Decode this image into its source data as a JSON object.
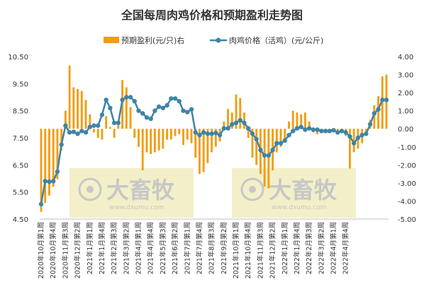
{
  "chart_data": {
    "type": "bar+line",
    "title": "全国每周肉鸡价格和预期盈利走势图",
    "legend": {
      "position": "top-center",
      "bar_label": "预期盈利(元/只)右",
      "line_label": "肉鸡价格（活鸡）(元/公斤)"
    },
    "colors": {
      "bar": "#f39c11",
      "line": "#3d84a8",
      "watermark_bg": "#f3efc9",
      "watermark_text": "#c7c7c7"
    },
    "y_left": {
      "min": 4.5,
      "max": 10.5,
      "ticks": [
        "4.50",
        "5.50",
        "6.50",
        "7.50",
        "8.50",
        "9.50",
        "10.50"
      ]
    },
    "y_right": {
      "min": -5,
      "max": 4,
      "ticks": [
        "-5.00",
        "-4.00",
        "-3.00",
        "-2.00",
        "-1.00",
        "0.00",
        "1.00",
        "2.00",
        "3.00",
        "4.00"
      ]
    },
    "x_tick_labels": [
      "2020年10月第1周",
      "2020年10月第4周",
      "2020年11月第3周",
      "2020年12月第2周",
      "2021年1月第1周",
      "2021年1月第4周",
      "2021年2月第3周",
      "2021年3月第2周",
      "2021年4月第1周",
      "2021年4月第4周",
      "2021年5月第3周",
      "2021年6月第2周",
      "2021年7月第1周",
      "2021年7月第4周",
      "2021年8月第3周",
      "2021年9月第2周",
      "2021年10月第1周",
      "2021年10月第4周",
      "2021年11月第3周",
      "2021年12月第2周",
      "2022年1月第1周",
      "2022年1月第4周",
      "2022年2月第3周",
      "2022年3月第2周",
      "2022年4月第1周",
      "2022年4月第4周"
    ],
    "watermark": {
      "brand": "大畜牧",
      "url": "www.dxumu.com"
    },
    "price": [
      5.05,
      5.9,
      5.88,
      5.9,
      6.25,
      7.25,
      7.95,
      7.7,
      7.72,
      7.65,
      7.75,
      7.7,
      7.9,
      7.95,
      7.95,
      8.35,
      8.9,
      8.6,
      8.05,
      8.05,
      8.9,
      9.0,
      9.0,
      8.85,
      8.5,
      8.4,
      8.25,
      8.2,
      8.5,
      8.65,
      8.6,
      8.7,
      8.95,
      8.95,
      8.85,
      8.5,
      8.45,
      8.55,
      7.7,
      7.6,
      7.7,
      7.65,
      7.65,
      7.68,
      7.6,
      7.85,
      7.85,
      8.0,
      8.05,
      8.15,
      8.05,
      7.85,
      7.65,
      7.45,
      7.05,
      6.85,
      6.85,
      7.05,
      7.3,
      7.3,
      7.4,
      7.6,
      7.75,
      7.85,
      7.9,
      7.8,
      7.85,
      7.8,
      7.8,
      7.75,
      7.75,
      7.75,
      7.78,
      7.7,
      7.75,
      7.7,
      7.55,
      7.3,
      7.5,
      7.6,
      7.65,
      8.0,
      8.4,
      8.55,
      8.9,
      8.9
    ],
    "profit": [
      -4.6,
      -4.1,
      -3.7,
      -3.2,
      -2.8,
      -1.2,
      1.0,
      3.5,
      2.3,
      2.2,
      2.1,
      1.6,
      0.8,
      -0.2,
      -0.5,
      -0.6,
      0.7,
      0.1,
      -0.5,
      0.2,
      2.7,
      2.3,
      1.2,
      -0.5,
      -1.0,
      -2.3,
      -1.3,
      -1.4,
      -1.3,
      -1.2,
      -1.1,
      -0.6,
      -0.6,
      -0.4,
      -0.3,
      -0.9,
      -0.6,
      -0.8,
      -1.6,
      -2.5,
      -2.4,
      -1.9,
      -1.3,
      -1.0,
      -0.7,
      0.4,
      1.1,
      0.9,
      1.9,
      1.7,
      0.9,
      -0.5,
      -1.6,
      -2.0,
      -2.5,
      -3.2,
      -3.3,
      -2.3,
      -1.3,
      -1.0,
      -0.7,
      0.4,
      1.0,
      0.9,
      0.8,
      0.9,
      0.4,
      -0.2,
      -0.3,
      -0.2,
      -0.2,
      -0.2,
      -0.2,
      -0.3,
      -0.2,
      -0.4,
      -2.2,
      -1.3,
      -1.1,
      -0.8,
      -0.4,
      0.5,
      1.3,
      1.8,
      2.9,
      3.0
    ]
  }
}
